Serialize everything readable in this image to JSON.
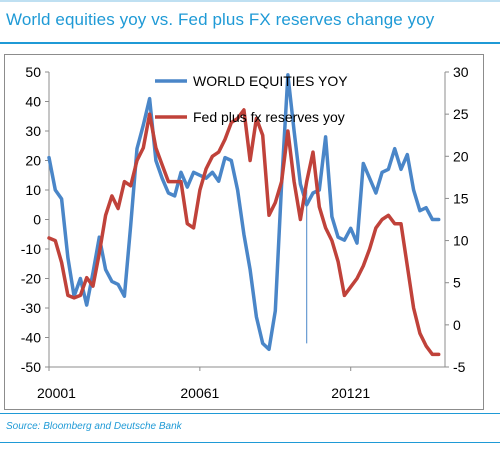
{
  "title": "World equities yoy vs. Fed plus FX reserves change yoy",
  "source": "Source: Bloomberg and Deutsche Bank",
  "chart_data": {
    "type": "line",
    "x_tick_labels": [
      "20001",
      "20061",
      "20121"
    ],
    "y_left": {
      "ylim": [
        -50,
        50
      ],
      "ticks": [
        50,
        40,
        30,
        20,
        10,
        0,
        -10,
        -20,
        -30,
        -40,
        -50
      ]
    },
    "y_right": {
      "ylim": [
        -5,
        30
      ],
      "ticks": [
        30,
        25,
        20,
        15,
        10,
        5,
        0,
        -5
      ]
    },
    "grid": false,
    "legend": "top-center",
    "x_range": [
      2000,
      2015.75
    ],
    "series": [
      {
        "name": "WORLD EQUITIES YOY",
        "axis": "left",
        "color": "#4a86c8",
        "x": [
          2000.0,
          2000.25,
          2000.5,
          2000.75,
          2001.0,
          2001.25,
          2001.5,
          2001.75,
          2002.0,
          2002.25,
          2002.5,
          2002.75,
          2003.0,
          2003.25,
          2003.5,
          2003.75,
          2004.0,
          2004.25,
          2004.5,
          2004.75,
          2005.0,
          2005.25,
          2005.5,
          2005.75,
          2006.0,
          2006.25,
          2006.5,
          2006.75,
          2007.0,
          2007.25,
          2007.5,
          2007.75,
          2008.0,
          2008.25,
          2008.5,
          2008.75,
          2009.0,
          2009.25,
          2009.5,
          2009.75,
          2010.0,
          2010.25,
          2010.5,
          2010.75,
          2011.0,
          2011.25,
          2011.5,
          2011.75,
          2012.0,
          2012.25,
          2012.5,
          2012.75,
          2013.0,
          2013.25,
          2013.5,
          2013.75,
          2014.0,
          2014.25,
          2014.5,
          2014.75,
          2015.0,
          2015.25,
          2015.5
        ],
        "values": [
          21,
          10,
          7,
          -13,
          -26,
          -20,
          -29,
          -18,
          -6,
          -17,
          -21,
          -22,
          -26,
          -2,
          24,
          32,
          41,
          20,
          14,
          9,
          8,
          16,
          11,
          16,
          15,
          14,
          16,
          13,
          21,
          20,
          10,
          -5,
          -17,
          -33,
          -42,
          -44,
          -31,
          12,
          49,
          30,
          12,
          5,
          9,
          10,
          28,
          1,
          -6,
          -7,
          -3,
          -8,
          19,
          14,
          9,
          16,
          17,
          24,
          17,
          22,
          10,
          3,
          4,
          0,
          0
        ]
      },
      {
        "name": "Fed plus fx reserves yoy",
        "axis": "right",
        "color": "#c0423a",
        "x": [
          2000.0,
          2000.25,
          2000.5,
          2000.75,
          2001.0,
          2001.25,
          2001.5,
          2001.75,
          2002.0,
          2002.25,
          2002.5,
          2002.75,
          2003.0,
          2003.25,
          2003.5,
          2003.75,
          2004.0,
          2004.25,
          2004.5,
          2004.75,
          2005.0,
          2005.25,
          2005.5,
          2005.75,
          2006.0,
          2006.25,
          2006.5,
          2006.75,
          2007.0,
          2007.25,
          2007.5,
          2007.75,
          2008.0,
          2008.25,
          2008.5,
          2008.75,
          2009.0,
          2009.25,
          2009.5,
          2009.75,
          2010.0,
          2010.25,
          2010.5,
          2010.75,
          2011.0,
          2011.25,
          2011.5,
          2011.75,
          2012.0,
          2012.25,
          2012.5,
          2012.75,
          2013.0,
          2013.25,
          2013.5,
          2013.75,
          2014.0,
          2014.25,
          2014.5,
          2014.75,
          2015.0,
          2015.25,
          2015.5
        ],
        "values": [
          10.3,
          10,
          7.4,
          3.5,
          3.2,
          3.5,
          5.6,
          4.6,
          8.5,
          13,
          15.3,
          13.8,
          17,
          16.5,
          19.5,
          21,
          25,
          21,
          19,
          17,
          17,
          17,
          12,
          11.5,
          16,
          18.5,
          20,
          20.5,
          22,
          24,
          24.5,
          25.5,
          19.5,
          24.5,
          22.5,
          13,
          14.5,
          17,
          23,
          17,
          12.5,
          17,
          20.5,
          14,
          11.5,
          10,
          7.5,
          3.5,
          4.5,
          5.5,
          7,
          9,
          11.5,
          12.5,
          13,
          12,
          12,
          7,
          2,
          -1,
          -2.5,
          -3.5,
          -3.5
        ]
      }
    ],
    "annotation": {
      "type": "vertical-line",
      "x": 2010.25,
      "from": 10,
      "to": -42
    }
  }
}
